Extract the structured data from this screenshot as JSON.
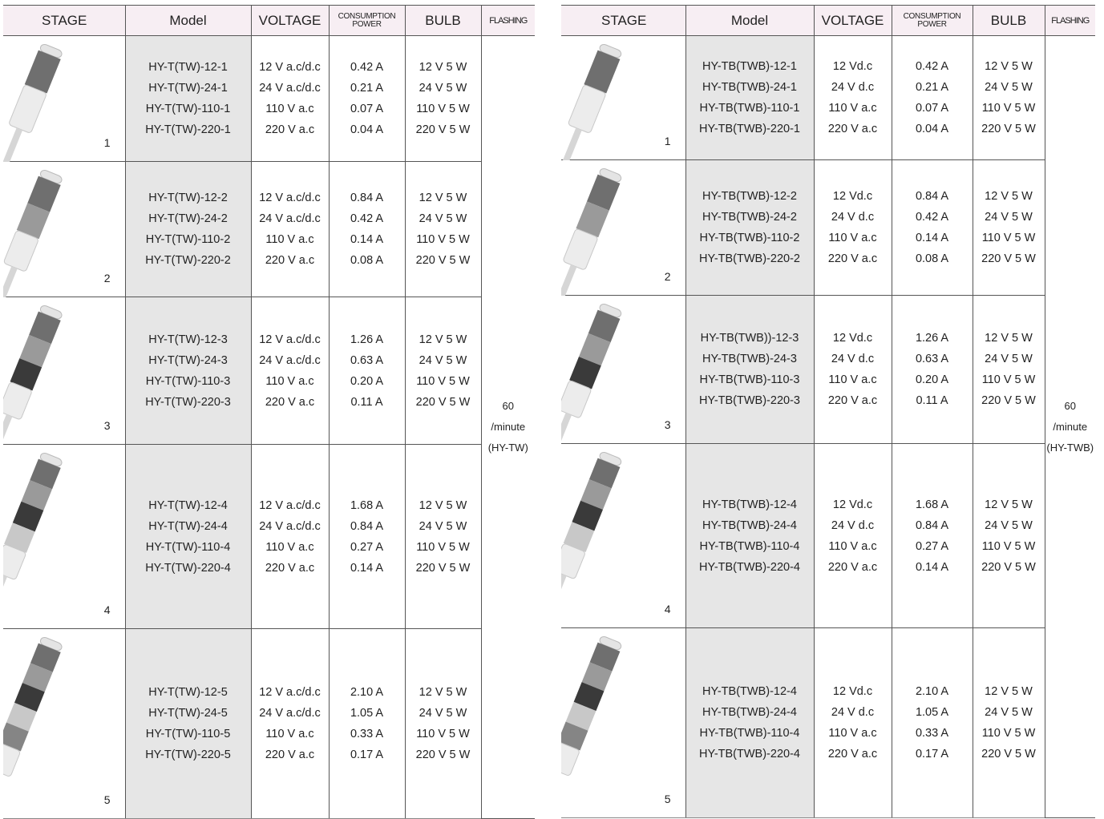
{
  "headers": {
    "stage": "STAGE",
    "model": "Model",
    "voltage": "VOLTAGE",
    "consumption_line1": "CONSUMPTION",
    "consumption_line2": "POWER",
    "bulb": "BULB",
    "flashing": "FLASHING"
  },
  "left": {
    "flashing": [
      "60",
      "/minute",
      "(HY-TW)"
    ],
    "rows": [
      {
        "stage": "1",
        "models": [
          "HY-T(TW)-12-1",
          "HY-T(TW)-24-1",
          "HY-T(TW)-110-1",
          "HY-T(TW)-220-1"
        ],
        "voltages": [
          "12 V a.c/d.c",
          "24 V a.c/d.c",
          "110 V a.c",
          "220 V a.c"
        ],
        "power": [
          "0.42 A",
          "0.21 A",
          "0.07 A",
          "0.04 A"
        ],
        "bulbs": [
          "12 V 5 W",
          "24 V 5 W",
          "110 V 5 W",
          "220 V 5 W"
        ]
      },
      {
        "stage": "2",
        "models": [
          "HY-T(TW)-12-2",
          "HY-T(TW)-24-2",
          "HY-T(TW)-110-2",
          "HY-T(TW)-220-2"
        ],
        "voltages": [
          "12 V a.c/d.c",
          "24 V a.c/d.c",
          "110 V a.c",
          "220 V a.c"
        ],
        "power": [
          "0.84 A",
          "0.42 A",
          "0.14 A",
          "0.08 A"
        ],
        "bulbs": [
          "12 V 5 W",
          "24 V 5 W",
          "110 V 5 W",
          "220 V 5 W"
        ]
      },
      {
        "stage": "3",
        "models": [
          "HY-T(TW)-12-3",
          "HY-T(TW)-24-3",
          "HY-T(TW)-110-3",
          "HY-T(TW)-220-3"
        ],
        "voltages": [
          "12 V a.c/d.c",
          "24 V a.c/d.c",
          "110 V a.c",
          "220 V a.c"
        ],
        "power": [
          "1.26 A",
          "0.63 A",
          "0.20 A",
          "0.11 A"
        ],
        "bulbs": [
          "12 V 5 W",
          "24 V 5 W",
          "110 V 5 W",
          "220 V 5 W"
        ]
      },
      {
        "stage": "4",
        "models": [
          "HY-T(TW)-12-4",
          "HY-T(TW)-24-4",
          "HY-T(TW)-110-4",
          "HY-T(TW)-220-4"
        ],
        "voltages": [
          "12 V a.c/d.c",
          "24 V a.c/d.c",
          "110 V a.c",
          "220 V a.c"
        ],
        "power": [
          "1.68 A",
          "0.84 A",
          "0.27 A",
          "0.14 A"
        ],
        "bulbs": [
          "12 V 5 W",
          "24 V 5 W",
          "110 V 5 W",
          "220 V 5 W"
        ]
      },
      {
        "stage": "5",
        "models": [
          "HY-T(TW)-12-5",
          "HY-T(TW)-24-5",
          "HY-T(TW)-110-5",
          "HY-T(TW)-220-5"
        ],
        "voltages": [
          "12 V a.c/d.c",
          "24 V a.c/d.c",
          "110 V a.c",
          "220 V a.c"
        ],
        "power": [
          "2.10 A",
          "1.05 A",
          "0.33 A",
          "0.17 A"
        ],
        "bulbs": [
          "12 V 5 W",
          "24 V 5 W",
          "110 V 5 W",
          "220 V 5 W"
        ]
      }
    ]
  },
  "right": {
    "flashing": [
      "60",
      "/minute",
      "(HY-TWB)"
    ],
    "rows": [
      {
        "stage": "1",
        "models": [
          "HY-TB(TWB)-12-1",
          "HY-TB(TWB)-24-1",
          "HY-TB(TWB)-110-1",
          "HY-TB(TWB)-220-1"
        ],
        "voltages": [
          "12 Vd.c",
          "24 V d.c",
          "110 V a.c",
          "220 V a.c"
        ],
        "power": [
          "0.42 A",
          "0.21 A",
          "0.07 A",
          "0.04 A"
        ],
        "bulbs": [
          "12 V 5 W",
          "24 V 5 W",
          "110 V 5 W",
          "220 V 5 W"
        ]
      },
      {
        "stage": "2",
        "models": [
          "HY-TB(TWB)-12-2",
          "HY-TB(TWB)-24-2",
          "HY-TB(TWB)-110-2",
          "HY-TB(TWB)-220-2"
        ],
        "voltages": [
          "12 Vd.c",
          "24 V d.c",
          "110 V a.c",
          "220 V a.c"
        ],
        "power": [
          "0.84 A",
          "0.42 A",
          "0.14 A",
          "0.08 A"
        ],
        "bulbs": [
          "12 V 5 W",
          "24 V 5 W",
          "110 V 5 W",
          "220 V 5 W"
        ]
      },
      {
        "stage": "3",
        "models": [
          "HY-TB(TWB))-12-3",
          "HY-TB(TWB)-24-3",
          "HY-TB(TWB)-110-3",
          "HY-TB(TWB)-220-3"
        ],
        "voltages": [
          "12 Vd.c",
          "24 V d.c",
          "110 V a.c",
          "220 V a.c"
        ],
        "power": [
          "1.26 A",
          "0.63 A",
          "0.20 A",
          "0.11 A"
        ],
        "bulbs": [
          "12 V 5 W",
          "24 V 5 W",
          "110 V 5 W",
          "220 V 5 W"
        ]
      },
      {
        "stage": "4",
        "models": [
          "HY-TB(TWB)-12-4",
          "HY-TB(TWB)-24-4",
          "HY-TB(TWB)-110-4",
          "HY-TB(TWB)-220-4"
        ],
        "voltages": [
          "12 Vd.c",
          "24 V d.c",
          "110 V a.c",
          "220 V a.c"
        ],
        "power": [
          "1.68 A",
          "0.84 A",
          "0.27 A",
          "0.14 A"
        ],
        "bulbs": [
          "12 V 5 W",
          "24 V 5 W",
          "110 V 5 W",
          "220 V 5 W"
        ]
      },
      {
        "stage": "5",
        "models": [
          "HY-TB(TWB)-12-4",
          "HY-TB(TWB)-24-4",
          "HY-TB(TWB)-110-4",
          "HY-TB(TWB)-220-4"
        ],
        "voltages": [
          "12 Vd.c",
          "24 V d.c",
          "110 V a.c",
          "220 V a.c"
        ],
        "power": [
          "2.10 A",
          "1.05 A",
          "0.33 A",
          "0.17 A"
        ],
        "bulbs": [
          "12 V 5 W",
          "24 V 5 W",
          "110 V 5 W",
          "220 V 5 W"
        ]
      }
    ]
  }
}
